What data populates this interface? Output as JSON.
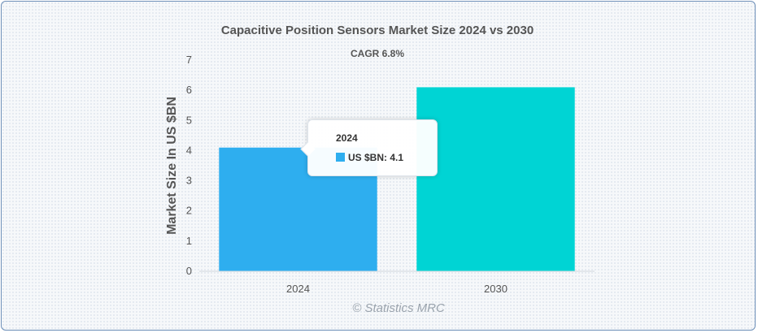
{
  "chart_data": {
    "type": "bar",
    "title": "Capacitive Position Sensors Market Size 2024 vs 2030",
    "subtitle": "CAGR 6.8%",
    "ylabel": "Market Size In US $BN",
    "xlabel": "",
    "categories": [
      "2024",
      "2030"
    ],
    "values": [
      4.1,
      6.1
    ],
    "bar_colors": [
      "#2eaeef",
      "#00d4d4"
    ],
    "ylim": [
      0,
      7
    ],
    "yticks": [
      "0",
      "1",
      "2",
      "3",
      "4",
      "5",
      "6",
      "7"
    ],
    "grid": false,
    "legend": "none"
  },
  "tooltip": {
    "title": "2024",
    "series_label": "US $BN",
    "value_text": "4.1",
    "swatch_color": "#2eaeef"
  },
  "watermark": "© Statistics MRC"
}
